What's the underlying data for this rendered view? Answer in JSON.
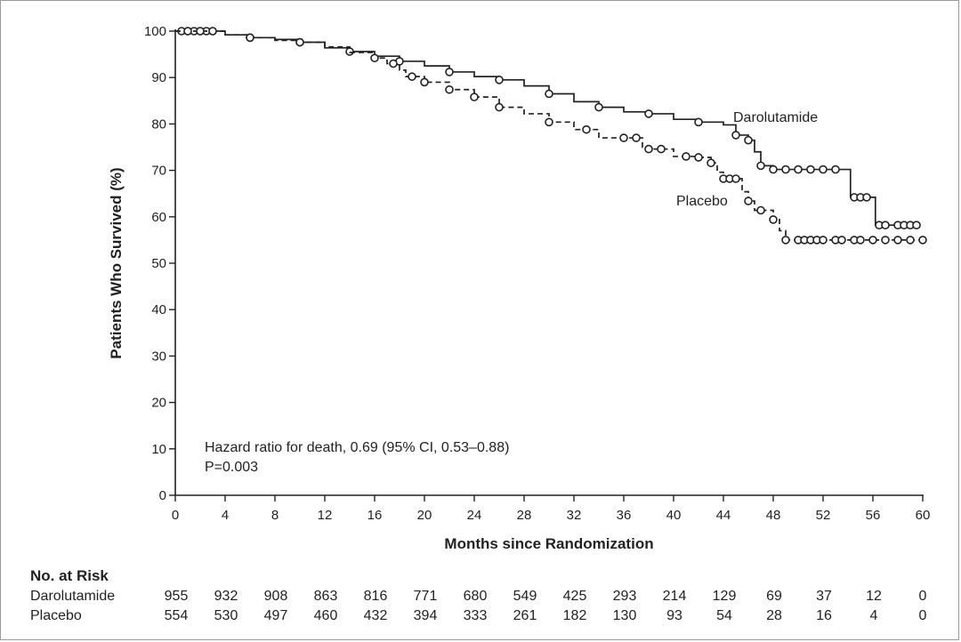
{
  "chart_data": {
    "type": "line",
    "xlabel": "Months since Randomization",
    "ylabel": "Patients Who Survived (%)",
    "xlim": [
      0,
      60
    ],
    "ylim": [
      0,
      100
    ],
    "x_ticks": [
      0,
      4,
      8,
      12,
      16,
      20,
      24,
      28,
      32,
      36,
      40,
      44,
      48,
      52,
      56,
      60
    ],
    "y_ticks": [
      0,
      10,
      20,
      30,
      40,
      50,
      60,
      70,
      80,
      90,
      100
    ],
    "grid": false,
    "legend": "inline labels",
    "series": [
      {
        "name": "Darolutamide",
        "style": "solid",
        "color": "#222222",
        "x": [
          0,
          2,
          4,
          6,
          8,
          10,
          12,
          14,
          16,
          18,
          20,
          22,
          24,
          26,
          28,
          30,
          32,
          34,
          36,
          38,
          40,
          42,
          44,
          45,
          46,
          46.5,
          47,
          47.5,
          48,
          52,
          54,
          54.2,
          56,
          56.2,
          59.5
        ],
        "y": [
          100,
          100,
          99.2,
          98.6,
          98.2,
          97.6,
          96.4,
          95.6,
          94.6,
          93.5,
          92.5,
          91.2,
          90.2,
          89.5,
          88.2,
          86.5,
          84.8,
          83.6,
          82.6,
          82.2,
          81.0,
          80.4,
          79.8,
          77.6,
          76.5,
          74.0,
          71.0,
          71.0,
          70.2,
          70.2,
          70.2,
          64.2,
          64.2,
          58.2,
          58.2
        ],
        "censor_x": [
          0.5,
          1,
          1.5,
          2,
          2.5,
          3,
          6,
          10,
          14,
          18,
          22,
          26,
          30,
          34,
          38,
          42,
          45,
          46,
          47,
          48,
          49,
          50,
          51,
          52,
          53,
          54.5,
          55,
          55.5,
          56.5,
          57,
          58,
          58.5,
          59,
          59.5
        ]
      },
      {
        "name": "Placebo",
        "style": "dashed",
        "color": "#222222",
        "x": [
          0,
          2,
          4,
          6,
          8,
          10,
          12,
          14,
          16,
          17,
          18,
          18.5,
          20,
          22,
          24,
          26,
          28,
          30,
          32,
          34,
          36,
          37.5,
          38,
          40,
          42,
          43,
          43.5,
          44,
          45,
          45.5,
          46,
          46.5,
          47,
          48,
          48.5,
          49,
          60
        ],
        "y": [
          100,
          100,
          99.2,
          98.6,
          98.0,
          97.6,
          96.6,
          95.4,
          94.2,
          93.0,
          91.6,
          90.2,
          89.0,
          87.4,
          85.8,
          83.6,
          82.2,
          80.4,
          78.8,
          77.0,
          77.0,
          75.0,
          74.6,
          73.0,
          72.8,
          71.6,
          69.6,
          68.2,
          68.2,
          65.4,
          63.4,
          61.4,
          61.4,
          59.4,
          57.0,
          55.0,
          55.0
        ],
        "censor_x": [
          1,
          2,
          3,
          6,
          10,
          16,
          17.5,
          19,
          20,
          22,
          24,
          26,
          30,
          33,
          36,
          37,
          38,
          39,
          41,
          42,
          43,
          44,
          44.5,
          45,
          46,
          47,
          48,
          49,
          50,
          50.5,
          51,
          51.5,
          52,
          53,
          53.5,
          54.5,
          55,
          56,
          57,
          58,
          59,
          60
        ]
      }
    ],
    "annotations": [
      "Hazard ratio for death, 0.69 (95% CI, 0.53–0.88)",
      "P=0.003"
    ],
    "risk_table": {
      "title": "No. at Risk",
      "rows": [
        {
          "label": "Darolutamide",
          "values": [
            "955",
            "932",
            "908",
            "863",
            "816",
            "771",
            "680",
            "549",
            "425",
            "293",
            "214",
            "129",
            "69",
            "37",
            "12",
            "0"
          ]
        },
        {
          "label": "Placebo",
          "values": [
            "554",
            "530",
            "497",
            "460",
            "432",
            "394",
            "333",
            "261",
            "182",
            "130",
            "93",
            "54",
            "28",
            "16",
            "4",
            "0"
          ]
        }
      ]
    }
  }
}
